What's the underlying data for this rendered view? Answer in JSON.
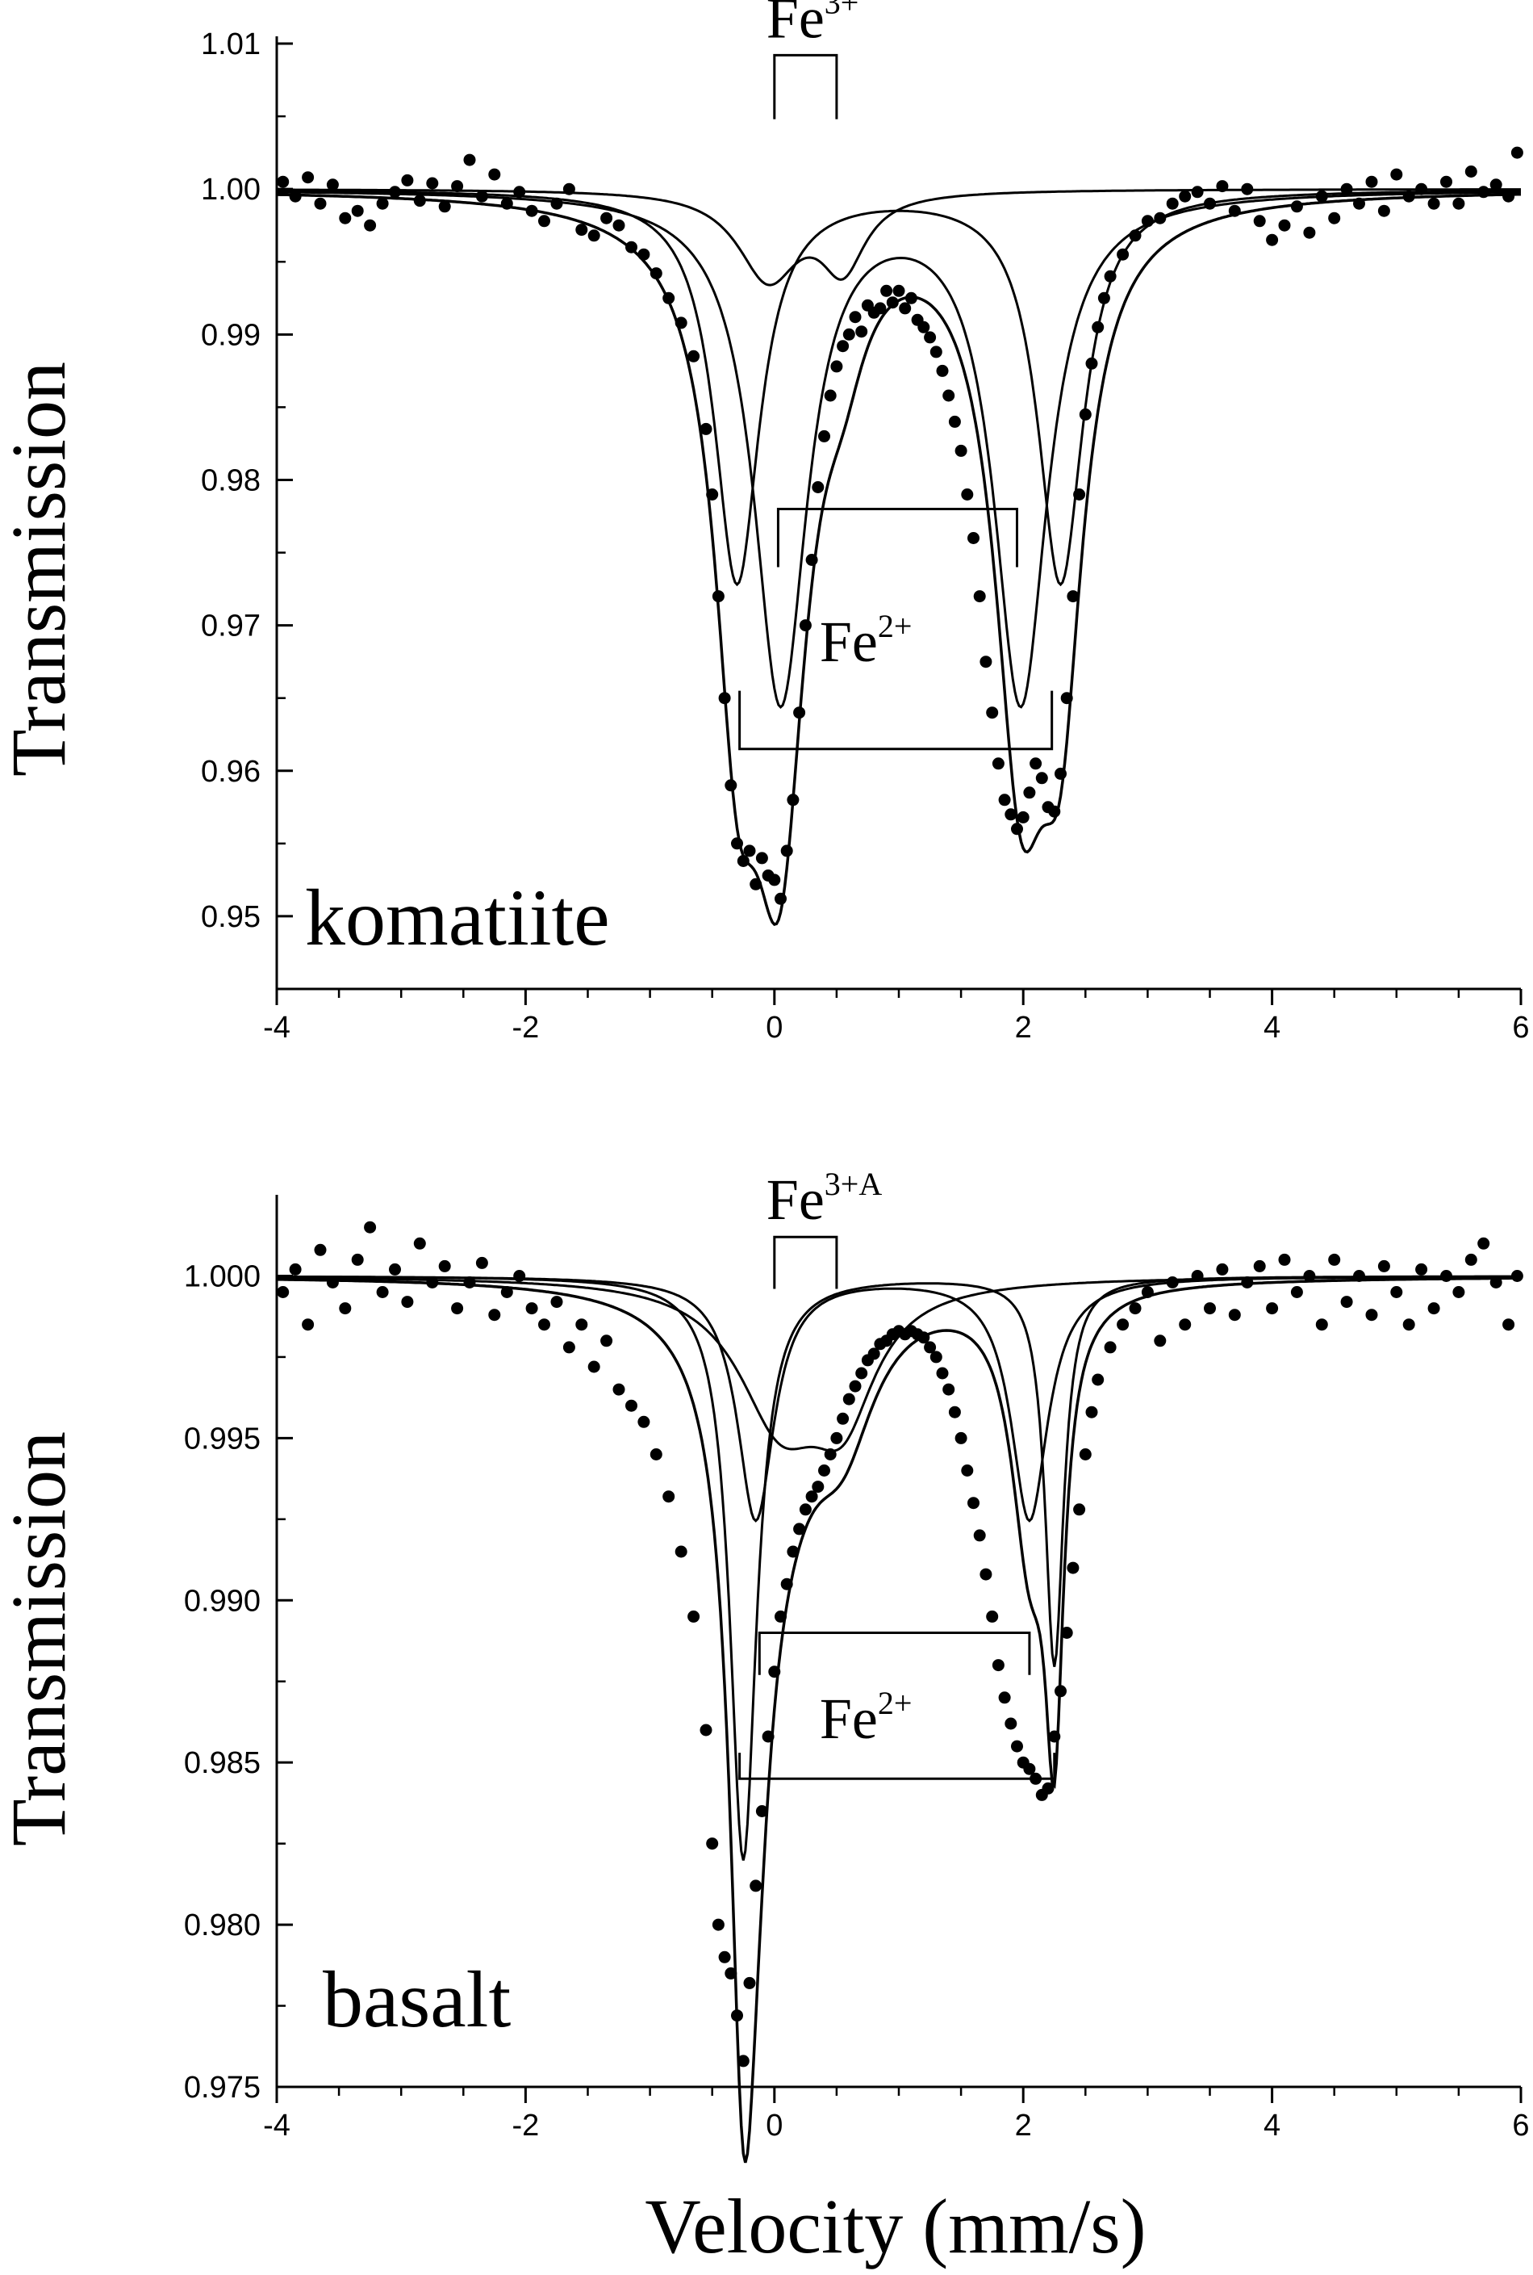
{
  "figure": {
    "xlabel": "Velocity (mm/s)",
    "ylabel": "Transmission"
  },
  "chart_data": [
    {
      "type": "scatter",
      "title": "",
      "panel_label": "komatiite",
      "xlabel": "",
      "ylabel": "Transmission",
      "xlim": [
        -4,
        6
      ],
      "ylim": [
        0.945,
        1.0105
      ],
      "x_ticks": [
        "-4",
        "-2",
        "0",
        "2",
        "4",
        "6"
      ],
      "y_ticks": [
        "0.95",
        "0.96",
        "0.97",
        "0.98",
        "0.99",
        "1.00",
        "1.01"
      ],
      "y_tick_values": [
        0.95,
        0.96,
        0.97,
        0.98,
        0.99,
        1.0,
        1.01
      ],
      "grid": false,
      "legend": "none",
      "fit_components": [
        {
          "role": "Fe3+ doublet",
          "lines": [
            {
              "center": -0.05,
              "depth": 0.006,
              "hwhm": 0.3
            },
            {
              "center": 0.55,
              "depth": 0.005,
              "hwhm": 0.22
            }
          ]
        },
        {
          "role": "Fe2+ doublet (inner)",
          "lines": [
            {
              "center": 0.05,
              "depth": 0.035,
              "hwhm": 0.26
            },
            {
              "center": 1.98,
              "depth": 0.035,
              "hwhm": 0.26
            }
          ]
        },
        {
          "role": "Fe2+ doublet (outer)",
          "lines": [
            {
              "center": -0.3,
              "depth": 0.027,
              "hwhm": 0.22
            },
            {
              "center": 2.3,
              "depth": 0.027,
              "hwhm": 0.22
            }
          ]
        }
      ],
      "data_points": [
        [
          -3.95,
          1.0005
        ],
        [
          -3.85,
          0.9995
        ],
        [
          -3.75,
          1.0008
        ],
        [
          -3.65,
          0.999
        ],
        [
          -3.55,
          1.0003
        ],
        [
          -3.45,
          0.998
        ],
        [
          -3.35,
          0.9985
        ],
        [
          -3.25,
          0.9975
        ],
        [
          -3.15,
          0.999
        ],
        [
          -3.05,
          0.9998
        ],
        [
          -2.95,
          1.0006
        ],
        [
          -2.85,
          0.9992
        ],
        [
          -2.75,
          1.0004
        ],
        [
          -2.65,
          0.9988
        ],
        [
          -2.55,
          1.0002
        ],
        [
          -2.45,
          1.002
        ],
        [
          -2.35,
          0.9995
        ],
        [
          -2.25,
          1.001
        ],
        [
          -2.15,
          0.999
        ],
        [
          -2.05,
          0.9998
        ],
        [
          -1.95,
          0.9985
        ],
        [
          -1.85,
          0.9978
        ],
        [
          -1.75,
          0.999
        ],
        [
          -1.65,
          1.0
        ],
        [
          -1.55,
          0.9972
        ],
        [
          -1.45,
          0.9968
        ],
        [
          -1.35,
          0.998
        ],
        [
          -1.25,
          0.9975
        ],
        [
          -1.15,
          0.996
        ],
        [
          -1.05,
          0.9955
        ],
        [
          -0.95,
          0.9942
        ],
        [
          -0.85,
          0.9925
        ],
        [
          -0.75,
          0.9908
        ],
        [
          -0.65,
          0.9885
        ],
        [
          -0.55,
          0.9835
        ],
        [
          -0.5,
          0.979
        ],
        [
          -0.45,
          0.972
        ],
        [
          -0.4,
          0.965
        ],
        [
          -0.35,
          0.959
        ],
        [
          -0.3,
          0.955
        ],
        [
          -0.25,
          0.9538
        ],
        [
          -0.2,
          0.9545
        ],
        [
          -0.15,
          0.9522
        ],
        [
          -0.1,
          0.954
        ],
        [
          -0.05,
          0.9528
        ],
        [
          0.0,
          0.9525
        ],
        [
          0.05,
          0.9512
        ],
        [
          0.1,
          0.9545
        ],
        [
          0.15,
          0.958
        ],
        [
          0.2,
          0.964
        ],
        [
          0.25,
          0.97
        ],
        [
          0.3,
          0.9745
        ],
        [
          0.35,
          0.9795
        ],
        [
          0.4,
          0.983
        ],
        [
          0.45,
          0.9858
        ],
        [
          0.5,
          0.9878
        ],
        [
          0.55,
          0.9892
        ],
        [
          0.6,
          0.99
        ],
        [
          0.65,
          0.9912
        ],
        [
          0.7,
          0.9902
        ],
        [
          0.75,
          0.992
        ],
        [
          0.8,
          0.9915
        ],
        [
          0.85,
          0.9918
        ],
        [
          0.9,
          0.993
        ],
        [
          0.95,
          0.9922
        ],
        [
          1.0,
          0.993
        ],
        [
          1.05,
          0.9918
        ],
        [
          1.1,
          0.9925
        ],
        [
          1.15,
          0.991
        ],
        [
          1.2,
          0.9905
        ],
        [
          1.25,
          0.9898
        ],
        [
          1.3,
          0.9888
        ],
        [
          1.35,
          0.9875
        ],
        [
          1.4,
          0.9858
        ],
        [
          1.45,
          0.984
        ],
        [
          1.5,
          0.982
        ],
        [
          1.55,
          0.979
        ],
        [
          1.6,
          0.976
        ],
        [
          1.65,
          0.972
        ],
        [
          1.7,
          0.9675
        ],
        [
          1.75,
          0.964
        ],
        [
          1.8,
          0.9605
        ],
        [
          1.85,
          0.958
        ],
        [
          1.9,
          0.957
        ],
        [
          1.95,
          0.956
        ],
        [
          2.0,
          0.9568
        ],
        [
          2.05,
          0.9585
        ],
        [
          2.1,
          0.9605
        ],
        [
          2.15,
          0.9595
        ],
        [
          2.2,
          0.9575
        ],
        [
          2.25,
          0.9572
        ],
        [
          2.3,
          0.9598
        ],
        [
          2.35,
          0.965
        ],
        [
          2.4,
          0.972
        ],
        [
          2.45,
          0.979
        ],
        [
          2.5,
          0.9845
        ],
        [
          2.55,
          0.988
        ],
        [
          2.6,
          0.9905
        ],
        [
          2.65,
          0.9925
        ],
        [
          2.7,
          0.994
        ],
        [
          2.8,
          0.9955
        ],
        [
          2.9,
          0.9968
        ],
        [
          3.0,
          0.9978
        ],
        [
          3.1,
          0.998
        ],
        [
          3.2,
          0.999
        ],
        [
          3.3,
          0.9995
        ],
        [
          3.4,
          0.9998
        ],
        [
          3.5,
          0.999
        ],
        [
          3.6,
          1.0002
        ],
        [
          3.7,
          0.9985
        ],
        [
          3.8,
          1.0
        ],
        [
          3.9,
          0.9978
        ],
        [
          4.0,
          0.9965
        ],
        [
          4.1,
          0.9975
        ],
        [
          4.2,
          0.9988
        ],
        [
          4.3,
          0.997
        ],
        [
          4.4,
          0.9995
        ],
        [
          4.5,
          0.998
        ],
        [
          4.6,
          1.0
        ],
        [
          4.7,
          0.999
        ],
        [
          4.8,
          1.0005
        ],
        [
          4.9,
          0.9985
        ],
        [
          5.0,
          1.001
        ],
        [
          5.1,
          0.9995
        ],
        [
          5.2,
          1.0
        ],
        [
          5.3,
          0.999
        ],
        [
          5.4,
          1.0005
        ],
        [
          5.5,
          0.999
        ],
        [
          5.6,
          1.0012
        ],
        [
          5.7,
          0.9998
        ],
        [
          5.8,
          1.0003
        ],
        [
          5.9,
          0.9995
        ],
        [
          5.97,
          1.0025
        ]
      ],
      "annotations": [
        {
          "text": "Fe",
          "sup": "3+",
          "bracket": {
            "x1": 0.0,
            "x2": 0.5,
            "y_top": 1.0092,
            "y_bottom": 1.0048
          }
        },
        {
          "text": "Fe",
          "sup": "2+",
          "brackets": [
            {
              "x1": 0.03,
              "x2": 1.95,
              "y_top": 0.978,
              "y_bottom": 0.974,
              "open": "down"
            },
            {
              "x1": -0.28,
              "x2": 2.23,
              "y_top": 0.9615,
              "y_bottom": 0.9655,
              "open": "up"
            }
          ]
        }
      ]
    },
    {
      "type": "scatter",
      "title": "",
      "panel_label": "basalt",
      "xlabel": "Velocity (mm/s)",
      "ylabel": "Transmission",
      "xlim": [
        -4,
        6
      ],
      "ylim": [
        0.975,
        1.0025
      ],
      "x_ticks": [
        "-4",
        "-2",
        "0",
        "2",
        "4",
        "6"
      ],
      "y_ticks": [
        "0.975",
        "0.980",
        "0.985",
        "0.990",
        "0.995",
        "1.000"
      ],
      "y_tick_values": [
        0.975,
        0.98,
        0.985,
        0.99,
        0.995,
        1.0
      ],
      "grid": false,
      "legend": "none",
      "fit_components": [
        {
          "role": "Fe3+ doublet",
          "lines": [
            {
              "center": 0.05,
              "depth": 0.0042,
              "hwhm": 0.42
            },
            {
              "center": 0.55,
              "depth": 0.0035,
              "hwhm": 0.32
            }
          ]
        },
        {
          "role": "Fe2+ doublet (inner)",
          "lines": [
            {
              "center": -0.15,
              "depth": 0.0075,
              "hwhm": 0.18
            },
            {
              "center": 2.05,
              "depth": 0.0075,
              "hwhm": 0.18
            }
          ]
        },
        {
          "role": "Fe2+ doublet (outer)",
          "lines": [
            {
              "center": -0.25,
              "depth": 0.018,
              "hwhm": 0.13
            },
            {
              "center": 2.25,
              "depth": 0.012,
              "hwhm": 0.09
            }
          ]
        }
      ],
      "data_points": [
        [
          -3.95,
          0.9995
        ],
        [
          -3.85,
          1.0002
        ],
        [
          -3.75,
          0.9985
        ],
        [
          -3.65,
          1.0008
        ],
        [
          -3.55,
          0.9998
        ],
        [
          -3.45,
          0.999
        ],
        [
          -3.35,
          1.0005
        ],
        [
          -3.25,
          1.0015
        ],
        [
          -3.15,
          0.9995
        ],
        [
          -3.05,
          1.0002
        ],
        [
          -2.95,
          0.9992
        ],
        [
          -2.85,
          1.001
        ],
        [
          -2.75,
          0.9998
        ],
        [
          -2.65,
          1.0003
        ],
        [
          -2.55,
          0.999
        ],
        [
          -2.45,
          0.9998
        ],
        [
          -2.35,
          1.0004
        ],
        [
          -2.25,
          0.9988
        ],
        [
          -2.15,
          0.9995
        ],
        [
          -2.05,
          1.0
        ],
        [
          -1.95,
          0.999
        ],
        [
          -1.85,
          0.9985
        ],
        [
          -1.75,
          0.9992
        ],
        [
          -1.65,
          0.9978
        ],
        [
          -1.55,
          0.9985
        ],
        [
          -1.45,
          0.9972
        ],
        [
          -1.35,
          0.998
        ],
        [
          -1.25,
          0.9965
        ],
        [
          -1.15,
          0.996
        ],
        [
          -1.05,
          0.9955
        ],
        [
          -0.95,
          0.9945
        ],
        [
          -0.85,
          0.9932
        ],
        [
          -0.75,
          0.9915
        ],
        [
          -0.65,
          0.9895
        ],
        [
          -0.55,
          0.986
        ],
        [
          -0.5,
          0.9825
        ],
        [
          -0.45,
          0.98
        ],
        [
          -0.4,
          0.979
        ],
        [
          -0.35,
          0.9785
        ],
        [
          -0.3,
          0.9772
        ],
        [
          -0.25,
          0.9758
        ],
        [
          -0.2,
          0.9782
        ],
        [
          -0.15,
          0.9812
        ],
        [
          -0.1,
          0.9835
        ],
        [
          -0.05,
          0.9858
        ],
        [
          0.0,
          0.9878
        ],
        [
          0.05,
          0.9895
        ],
        [
          0.1,
          0.9905
        ],
        [
          0.15,
          0.9915
        ],
        [
          0.2,
          0.9922
        ],
        [
          0.25,
          0.9928
        ],
        [
          0.3,
          0.9932
        ],
        [
          0.35,
          0.9935
        ],
        [
          0.4,
          0.994
        ],
        [
          0.45,
          0.9945
        ],
        [
          0.5,
          0.995
        ],
        [
          0.55,
          0.9956
        ],
        [
          0.6,
          0.9962
        ],
        [
          0.65,
          0.9966
        ],
        [
          0.7,
          0.997
        ],
        [
          0.75,
          0.9974
        ],
        [
          0.8,
          0.9976
        ],
        [
          0.85,
          0.9979
        ],
        [
          0.9,
          0.998
        ],
        [
          0.95,
          0.9982
        ],
        [
          1.0,
          0.9983
        ],
        [
          1.05,
          0.9982
        ],
        [
          1.1,
          0.9983
        ],
        [
          1.15,
          0.9982
        ],
        [
          1.2,
          0.9981
        ],
        [
          1.25,
          0.9978
        ],
        [
          1.3,
          0.9975
        ],
        [
          1.35,
          0.997
        ],
        [
          1.4,
          0.9965
        ],
        [
          1.45,
          0.9958
        ],
        [
          1.5,
          0.995
        ],
        [
          1.55,
          0.994
        ],
        [
          1.6,
          0.993
        ],
        [
          1.65,
          0.992
        ],
        [
          1.7,
          0.9908
        ],
        [
          1.75,
          0.9895
        ],
        [
          1.8,
          0.988
        ],
        [
          1.85,
          0.987
        ],
        [
          1.9,
          0.9862
        ],
        [
          1.95,
          0.9855
        ],
        [
          2.0,
          0.985
        ],
        [
          2.05,
          0.9848
        ],
        [
          2.1,
          0.9845
        ],
        [
          2.15,
          0.984
        ],
        [
          2.2,
          0.9842
        ],
        [
          2.25,
          0.9858
        ],
        [
          2.3,
          0.9872
        ],
        [
          2.35,
          0.989
        ],
        [
          2.4,
          0.991
        ],
        [
          2.45,
          0.9928
        ],
        [
          2.5,
          0.9945
        ],
        [
          2.55,
          0.9958
        ],
        [
          2.6,
          0.9968
        ],
        [
          2.7,
          0.9978
        ],
        [
          2.8,
          0.9985
        ],
        [
          2.9,
          0.999
        ],
        [
          3.0,
          0.9995
        ],
        [
          3.1,
          0.998
        ],
        [
          3.2,
          0.9998
        ],
        [
          3.3,
          0.9985
        ],
        [
          3.4,
          1.0
        ],
        [
          3.5,
          0.999
        ],
        [
          3.6,
          1.0002
        ],
        [
          3.7,
          0.9988
        ],
        [
          3.8,
          0.9998
        ],
        [
          3.9,
          1.0003
        ],
        [
          4.0,
          0.999
        ],
        [
          4.1,
          1.0005
        ],
        [
          4.2,
          0.9995
        ],
        [
          4.3,
          1.0
        ],
        [
          4.4,
          0.9985
        ],
        [
          4.5,
          1.0005
        ],
        [
          4.6,
          0.9992
        ],
        [
          4.7,
          1.0
        ],
        [
          4.8,
          0.9988
        ],
        [
          4.9,
          1.0003
        ],
        [
          5.0,
          0.9995
        ],
        [
          5.1,
          0.9985
        ],
        [
          5.2,
          1.0002
        ],
        [
          5.3,
          0.999
        ],
        [
          5.4,
          1.0
        ],
        [
          5.5,
          0.9995
        ],
        [
          5.6,
          1.0005
        ],
        [
          5.7,
          1.001
        ],
        [
          5.8,
          0.9998
        ],
        [
          5.9,
          0.9985
        ],
        [
          5.97,
          1.0
        ]
      ],
      "annotations": [
        {
          "text": "Fe",
          "sup": "3+A",
          "bracket": {
            "x1": 0.0,
            "x2": 0.5,
            "y_top": 1.0012,
            "y_bottom": 0.9996
          }
        },
        {
          "text": "Fe",
          "sup": "2+",
          "brackets": [
            {
              "x1": -0.12,
              "x2": 2.05,
              "y_top": 0.989,
              "y_bottom": 0.9877,
              "open": "down"
            },
            {
              "x1": -0.28,
              "x2": 2.25,
              "y_top": 0.9845,
              "y_bottom": 0.9853,
              "open": "up"
            }
          ]
        }
      ]
    }
  ]
}
